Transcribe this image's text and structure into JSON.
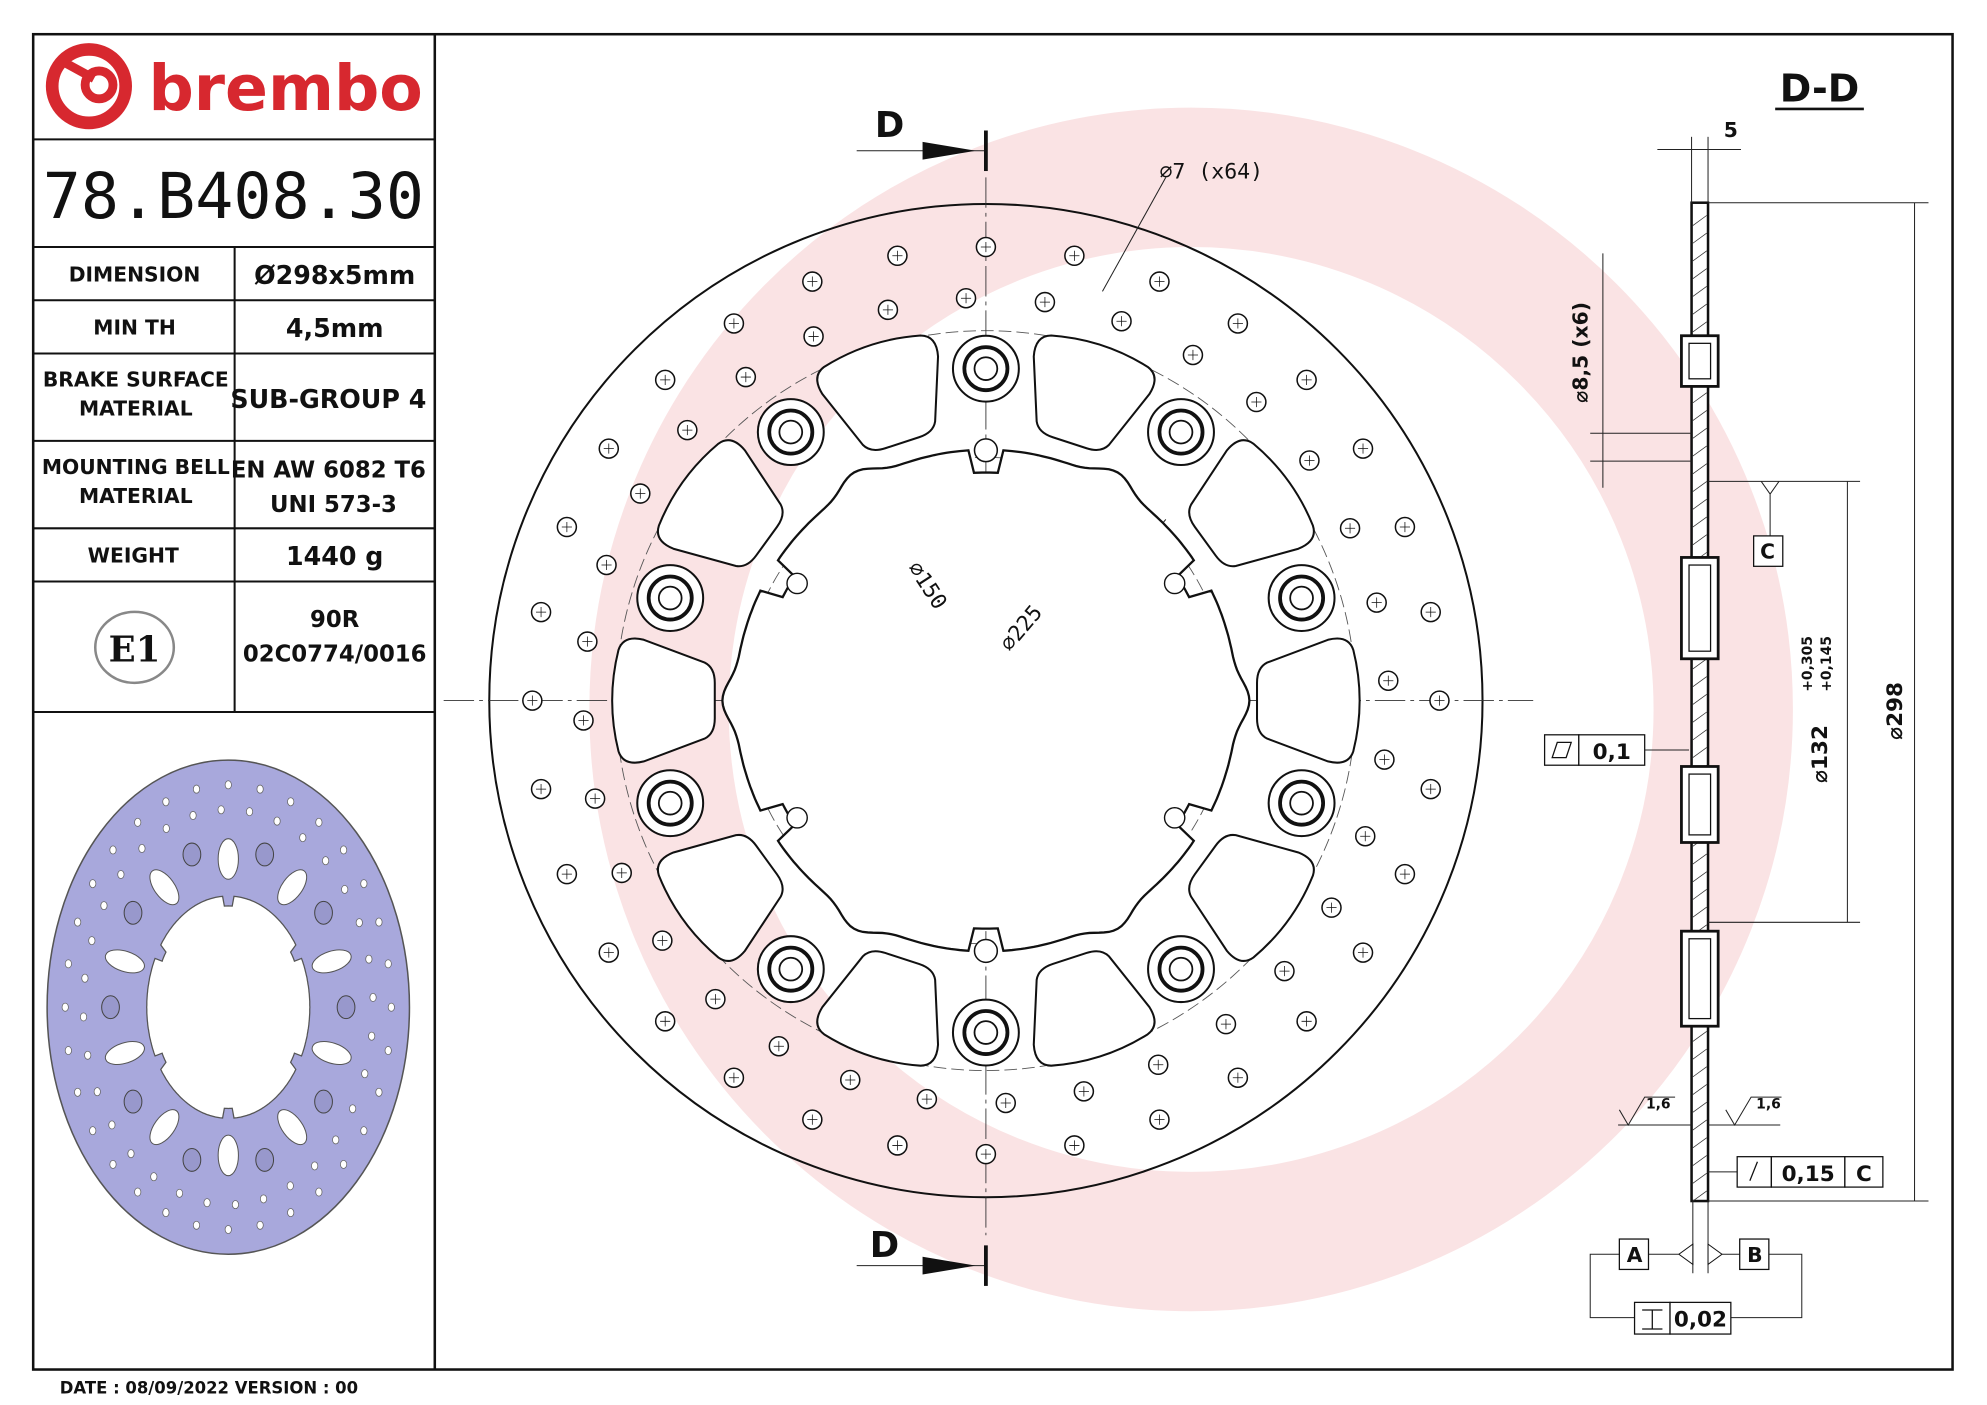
{
  "brand": {
    "name": "brembo",
    "color": "#d7282f"
  },
  "part_number": "78.B408.30",
  "specs": [
    {
      "label": "DIMENSION",
      "value": "Ø298x5mm"
    },
    {
      "label": "MIN TH",
      "value": "4,5mm"
    },
    {
      "label": "BRAKE SURFACE",
      "label2": "MATERIAL",
      "value": "SUB-GROUP 4"
    },
    {
      "label": "MOUNTING BELL",
      "label2": "MATERIAL",
      "value": "EN AW 6082 T6",
      "value2": "UNI 573-3"
    },
    {
      "label": "WEIGHT",
      "value": "1440 g"
    }
  ],
  "homologation": {
    "mark": "E1",
    "line1": "90R",
    "line2": "02C0774/0016"
  },
  "footer": "DATE : 08/09/2022 VERSION : 00",
  "front_view": {
    "section_marker": "D",
    "hole_callout": "⌀7 (x64)",
    "dim_inner": "⌀150",
    "dim_bolt": "⌀225"
  },
  "section_view": {
    "title": "D-D",
    "thickness": "5",
    "hole_dim": "⌀8,5 (x6)",
    "datum_c": "C",
    "flatness_value": "0,1",
    "bore_dim": "⌀132",
    "bore_tol_upper": "+0,305",
    "bore_tol_lower": "+0,145",
    "outer_dim": "⌀298",
    "roughness_left": "1,6",
    "roughness_right": "1,6",
    "runout_value": "0,15",
    "runout_datum": "C",
    "datum_a": "A",
    "datum_b": "B",
    "parallelism_value": "0,02"
  },
  "thumbnail_color": "#a8a8dc"
}
